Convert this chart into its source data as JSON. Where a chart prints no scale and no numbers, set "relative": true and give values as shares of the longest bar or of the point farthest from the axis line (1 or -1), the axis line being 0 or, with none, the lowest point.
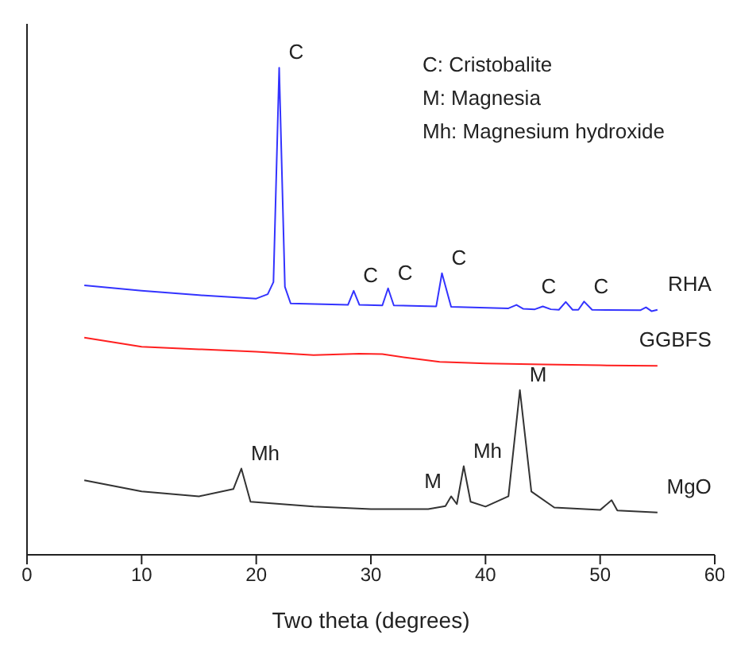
{
  "chart_data": {
    "type": "line",
    "relative": true,
    "xlabel": "Two theta (degrees)",
    "xlim": [
      0,
      60
    ],
    "xticks": [
      0,
      10,
      20,
      30,
      40,
      50,
      60
    ],
    "marker": "none",
    "line_style": "solid",
    "series": [
      {
        "name": "RHA",
        "color": "#3333ff",
        "x": [
          5,
          10,
          15,
          20,
          21,
          21.5,
          22,
          22.5,
          23,
          28,
          28.5,
          29,
          31,
          31.5,
          32,
          35.7,
          36.2,
          37,
          42,
          42.7,
          43.3,
          44.3,
          45,
          45.7,
          46.4,
          47,
          47.6,
          48.1,
          48.6,
          49.3,
          53.5,
          54,
          54.5,
          55
        ],
        "values": [
          0.553,
          0.542,
          0.533,
          0.526,
          0.535,
          0.56,
          1,
          0.55,
          0.516,
          0.513,
          0.542,
          0.513,
          0.512,
          0.547,
          0.512,
          0.51,
          0.578,
          0.509,
          0.506,
          0.513,
          0.505,
          0.504,
          0.51,
          0.504,
          0.503,
          0.519,
          0.503,
          0.503,
          0.52,
          0.503,
          0.502,
          0.508,
          0.5,
          0.503
        ]
      },
      {
        "name": "GGBFS",
        "color": "#ff2020",
        "x": [
          5,
          10,
          15,
          20,
          25,
          29,
          31,
          33,
          36,
          40,
          45,
          50,
          55
        ],
        "values": [
          0.446,
          0.427,
          0.422,
          0.417,
          0.41,
          0.413,
          0.412,
          0.405,
          0.396,
          0.393,
          0.391,
          0.389,
          0.388
        ]
      },
      {
        "name": "MgO",
        "color": "#333333",
        "x": [
          5,
          10,
          15,
          18,
          18.7,
          19.5,
          25,
          30,
          35,
          36.5,
          37,
          37.5,
          38.1,
          38.7,
          40,
          42,
          43,
          44,
          46,
          50,
          51,
          51.5,
          55
        ],
        "values": [
          0.153,
          0.13,
          0.12,
          0.135,
          0.177,
          0.109,
          0.099,
          0.094,
          0.094,
          0.1,
          0.12,
          0.104,
          0.182,
          0.109,
          0.099,
          0.12,
          0.338,
          0.13,
          0.097,
          0.092,
          0.112,
          0.091,
          0.087
        ]
      }
    ],
    "annotations": [
      "C: Cristobalite",
      "M: Magnesia",
      "Mh: Magnesium hydroxide",
      {
        "text": "C",
        "x": 22,
        "y": 1
      },
      {
        "text": "C",
        "x": 28.5,
        "y": 0.542
      },
      {
        "text": "C",
        "x": 31.5,
        "y": 0.547
      },
      {
        "text": "C",
        "x": 36.2,
        "y": 0.578
      },
      {
        "text": "C",
        "x": 47,
        "y": 0.519
      },
      {
        "text": "C",
        "x": 48.6,
        "y": 0.52
      },
      {
        "text": "Mh",
        "x": 18.7,
        "y": 0.177
      },
      {
        "text": "M",
        "x": 37,
        "y": 0.12
      },
      {
        "text": "Mh",
        "x": 38.1,
        "y": 0.182
      },
      {
        "text": "M",
        "x": 43,
        "y": 0.338
      }
    ]
  }
}
